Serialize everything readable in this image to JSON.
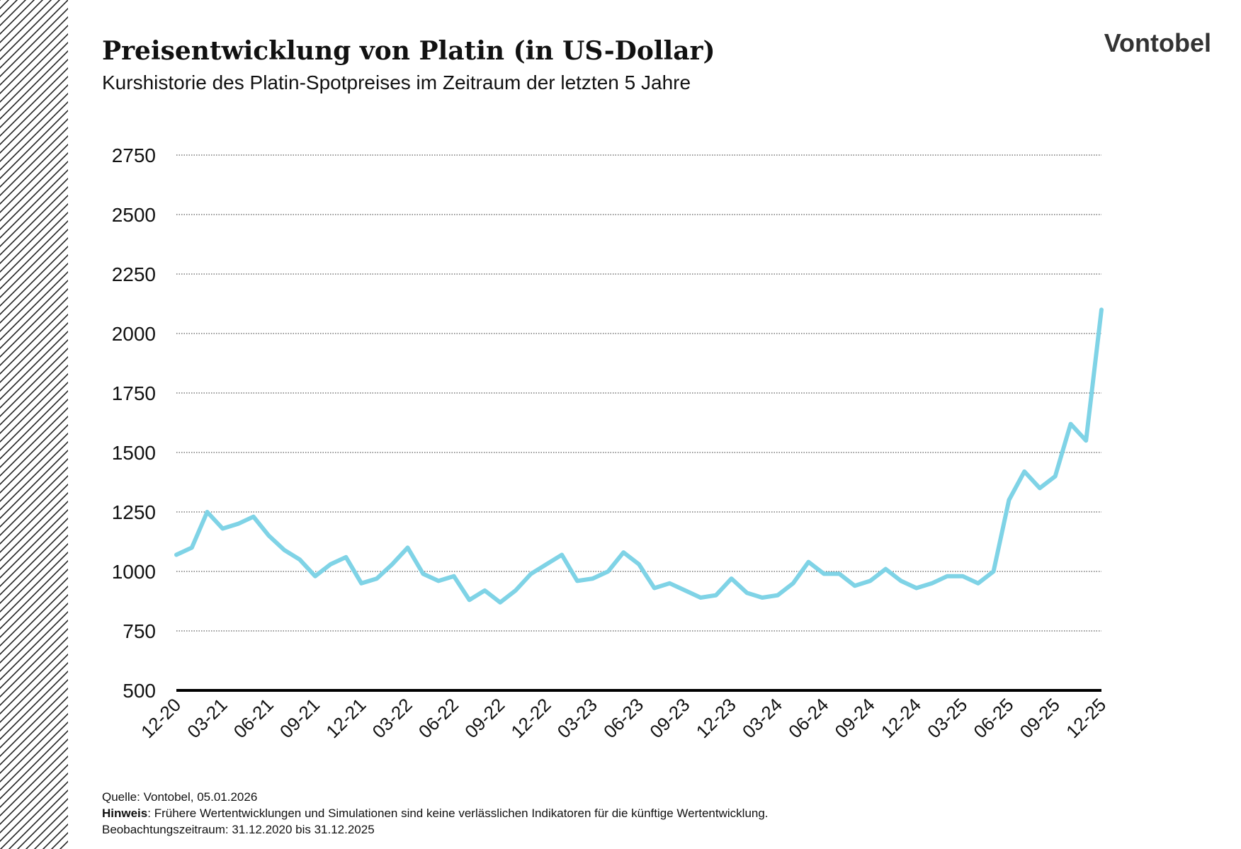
{
  "chart_data": {
    "type": "line",
    "title": "Preisentwicklung von Platin (in US-Dollar)",
    "subtitle": "Kurshistorie des Platin-Spotpreises im Zeitraum der letzten 5 Jahre",
    "brand": "Vontobel",
    "categories": [
      "12-20",
      null,
      null,
      "03-21",
      null,
      null,
      "06-21",
      null,
      null,
      "09-21",
      null,
      null,
      "12-21",
      null,
      null,
      "03-22",
      null,
      null,
      "06-22",
      null,
      null,
      "09-22",
      null,
      null,
      "12-22",
      null,
      null,
      "03-23",
      null,
      null,
      "06-23",
      null,
      null,
      "09-23",
      null,
      null,
      "12-23",
      null,
      null,
      "03-24",
      null,
      null,
      "06-24",
      null,
      null,
      "09-24",
      null,
      null,
      "12-24",
      null,
      null,
      "03-25",
      null,
      null,
      "06-25",
      null,
      null,
      "09-25",
      null,
      null,
      "12-25"
    ],
    "series": [
      {
        "name": "Platin",
        "color": "#7fd3e6",
        "values": [
          1070,
          1100,
          1250,
          1180,
          1200,
          1230,
          1150,
          1090,
          1050,
          980,
          1030,
          1060,
          950,
          970,
          1030,
          1100,
          990,
          960,
          980,
          880,
          920,
          870,
          920,
          990,
          1030,
          1070,
          960,
          970,
          1000,
          1080,
          1030,
          930,
          950,
          920,
          890,
          900,
          970,
          910,
          890,
          900,
          950,
          1040,
          990,
          990,
          940,
          960,
          1010,
          960,
          930,
          950,
          980,
          980,
          950,
          1000,
          1300,
          1420,
          1350,
          1400,
          1620,
          1550,
          2100
        ]
      }
    ],
    "ylim": [
      500,
      2750
    ],
    "yticks": [
      500,
      750,
      1000,
      1250,
      1500,
      1750,
      2000,
      2250,
      2500,
      2750
    ],
    "grid": true,
    "footer": {
      "source": "Quelle: Vontobel, 05.01.2026",
      "note_label": "Hinweis",
      "note": ": Frühere Wertentwicklungen und Simulationen sind keine verlässlichen Indikatoren für die künftige Wertentwicklung.",
      "period": "Beobachtungszeitraum: 31.12.2020 bis 31.12.2025"
    }
  }
}
